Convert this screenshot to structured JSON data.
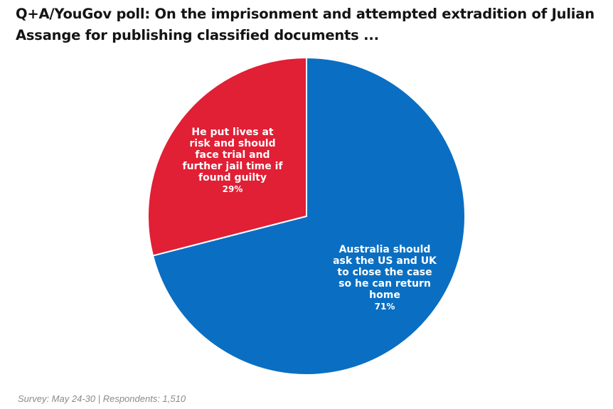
{
  "chart_data": {
    "type": "pie",
    "title": "Q+A/YouGov poll: On the imprisonment and attempted extradition of Julian Assange for publishing classified documents ...",
    "slices": [
      {
        "label_lines": [
          "Australia should",
          "ask the US and UK",
          "to close the case",
          "so he can return",
          "home"
        ],
        "value": 71,
        "value_label": "71%",
        "color": "#0a6fc2"
      },
      {
        "label_lines": [
          "He put lives at",
          "risk and should",
          "face trial and",
          "further jail time if",
          "found guilty"
        ],
        "value": 29,
        "value_label": "29%",
        "color": "#e11f35"
      }
    ],
    "start_angle": "12 o'clock",
    "direction": "clockwise"
  },
  "footnote": "Survey: May 24-30 | Respondents: 1,510"
}
